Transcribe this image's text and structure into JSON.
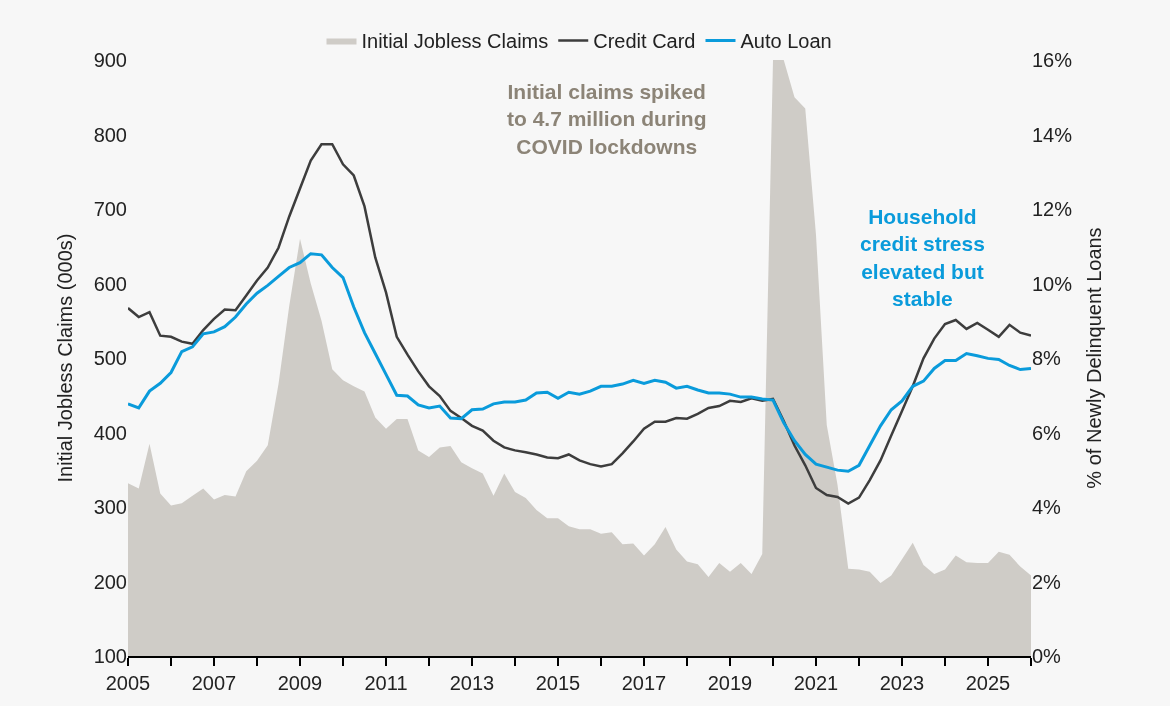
{
  "chart_data": {
    "type": "line",
    "x": [
      2005,
      2005.25,
      2005.5,
      2005.75,
      2006,
      2006.25,
      2006.5,
      2006.75,
      2007,
      2007.25,
      2007.5,
      2007.75,
      2008,
      2008.25,
      2008.5,
      2008.75,
      2009,
      2009.25,
      2009.5,
      2009.75,
      2010,
      2010.25,
      2010.5,
      2010.75,
      2011,
      2011.25,
      2011.5,
      2011.75,
      2012,
      2012.25,
      2012.5,
      2012.75,
      2013,
      2013.25,
      2013.5,
      2013.75,
      2014,
      2014.25,
      2014.5,
      2014.75,
      2015,
      2015.25,
      2015.5,
      2015.75,
      2016,
      2016.25,
      2016.5,
      2016.75,
      2017,
      2017.25,
      2017.5,
      2017.75,
      2018,
      2018.25,
      2018.5,
      2018.75,
      2019,
      2019.25,
      2019.5,
      2019.75,
      2020,
      2020.25,
      2020.5,
      2020.75,
      2021,
      2021.25,
      2021.5,
      2021.75,
      2022,
      2022.25,
      2022.5,
      2022.75,
      2023,
      2023.25,
      2023.5,
      2023.75,
      2024,
      2024.25,
      2024.5,
      2024.75,
      2025,
      2025.25,
      2025.5,
      2025.75,
      2026
    ],
    "series": [
      {
        "name": "Initial Jobless Claims",
        "type": "area",
        "color": "#cfccc7",
        "values": [
          332,
          325,
          385,
          318,
          302,
          305,
          315,
          325,
          310,
          316,
          314,
          348,
          362,
          383,
          465,
          570,
          660,
          600,
          550,
          485,
          470,
          462,
          455,
          420,
          405,
          418,
          418,
          376,
          367,
          380,
          382,
          360,
          352,
          345,
          315,
          345,
          320,
          312,
          296,
          285,
          285,
          274,
          270,
          270,
          264,
          266,
          250,
          251,
          235,
          250,
          273,
          243,
          227,
          223,
          206,
          225,
          213,
          225,
          210,
          237,
          900,
          900,
          850,
          835,
          665,
          410,
          330,
          217,
          216,
          213,
          198,
          208,
          230,
          252,
          222,
          210,
          216,
          235,
          226,
          225,
          225,
          240,
          236,
          220,
          208
        ]
      },
      {
        "name": "Credit Card",
        "axis": "y2",
        "color": "#3d3d3d",
        "values": [
          9.34,
          9.1,
          9.23,
          8.6,
          8.57,
          8.44,
          8.38,
          8.75,
          9.05,
          9.3,
          9.28,
          9.68,
          10.08,
          10.43,
          10.96,
          11.8,
          12.55,
          13.3,
          13.74,
          13.74,
          13.2,
          12.9,
          12.07,
          10.7,
          9.76,
          8.57,
          8.09,
          7.64,
          7.24,
          6.98,
          6.58,
          6.39,
          6.18,
          6.05,
          5.78,
          5.6,
          5.52,
          5.47,
          5.41,
          5.33,
          5.31,
          5.41,
          5.25,
          5.15,
          5.09,
          5.15,
          5.44,
          5.76,
          6.1,
          6.29,
          6.29,
          6.39,
          6.37,
          6.5,
          6.66,
          6.71,
          6.85,
          6.82,
          6.92,
          6.85,
          6.9,
          6.31,
          5.65,
          5.12,
          4.51,
          4.32,
          4.27,
          4.09,
          4.25,
          4.72,
          5.25,
          5.92,
          6.58,
          7.24,
          7.99,
          8.52,
          8.91,
          9.02,
          8.78,
          8.94,
          8.76,
          8.57,
          8.89,
          8.68,
          8.6
        ]
      },
      {
        "name": "Auto Loan",
        "axis": "y2",
        "color": "#0a9bdb",
        "values": [
          6.77,
          6.66,
          7.11,
          7.32,
          7.61,
          8.17,
          8.3,
          8.65,
          8.7,
          8.84,
          9.1,
          9.45,
          9.74,
          9.95,
          10.19,
          10.43,
          10.56,
          10.8,
          10.77,
          10.43,
          10.16,
          9.37,
          8.68,
          8.12,
          7.56,
          7.0,
          6.98,
          6.74,
          6.66,
          6.71,
          6.39,
          6.37,
          6.61,
          6.63,
          6.77,
          6.82,
          6.82,
          6.87,
          7.06,
          7.08,
          6.92,
          7.08,
          7.03,
          7.11,
          7.24,
          7.24,
          7.3,
          7.4,
          7.32,
          7.4,
          7.35,
          7.19,
          7.24,
          7.14,
          7.06,
          7.06,
          7.03,
          6.95,
          6.95,
          6.9,
          6.87,
          6.26,
          5.78,
          5.41,
          5.15,
          5.07,
          4.99,
          4.96,
          5.12,
          5.65,
          6.18,
          6.61,
          6.85,
          7.24,
          7.38,
          7.72,
          7.93,
          7.93,
          8.12,
          8.06,
          7.99,
          7.96,
          7.8,
          7.69,
          7.72
        ]
      }
    ],
    "ylabel": "Initial Jobless Claims (000s)",
    "y2label": "% of Newly Delinquent Loans",
    "xlim": [
      2005,
      2026
    ],
    "xticks": [
      2005,
      {
        "value": 2006,
        "label": null
      },
      2007,
      {
        "value": 2008,
        "label": null
      },
      2009,
      {
        "value": 2010,
        "label": null
      },
      2011,
      {
        "value": 2012,
        "label": null
      },
      2013,
      {
        "value": 2014,
        "label": null
      },
      2015,
      {
        "value": 2016,
        "label": null
      },
      2017,
      {
        "value": 2018,
        "label": null
      },
      2019,
      {
        "value": 2020,
        "label": null
      },
      2021,
      {
        "value": 2022,
        "label": null
      },
      2023,
      {
        "value": 2024,
        "label": null
      },
      2025,
      {
        "value": 2026,
        "label": null
      }
    ],
    "ylim": [
      100,
      900
    ],
    "yticks": [
      100,
      200,
      300,
      400,
      500,
      600,
      700,
      800,
      900
    ],
    "y2lim": [
      0,
      16
    ],
    "y2ticks": [
      {
        "value": 0,
        "label": "0%"
      },
      {
        "value": 2,
        "label": "2%"
      },
      {
        "value": 4,
        "label": "4%"
      },
      {
        "value": 6,
        "label": "6%"
      },
      {
        "value": 8,
        "label": "8%"
      },
      {
        "value": 10,
        "label": "10%"
      },
      {
        "value": 12,
        "label": "12%"
      },
      {
        "value": 14,
        "label": "14%"
      },
      {
        "value": 16,
        "label": "16%"
      }
    ],
    "annotations": [
      "Initial claims spiked\nto 4.7 million during\nCOVID lockdowns",
      "Household\ncredit stress\nelevated but\nstable"
    ],
    "legend": "top",
    "grid": false
  }
}
